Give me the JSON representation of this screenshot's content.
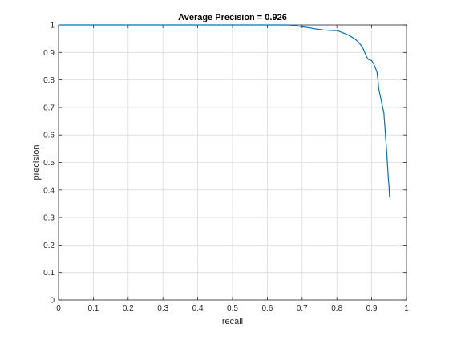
{
  "chart_data": {
    "type": "line",
    "title": "Average Precision = 0.926",
    "xlabel": "recall",
    "ylabel": "precision",
    "xlim": [
      0,
      1
    ],
    "ylim": [
      0,
      1
    ],
    "xticks": [
      "0",
      "0.1",
      "0.2",
      "0.3",
      "0.4",
      "0.5",
      "0.6",
      "0.7",
      "0.8",
      "0.9",
      "1"
    ],
    "yticks": [
      "0",
      "0.1",
      "0.2",
      "0.3",
      "0.4",
      "0.5",
      "0.6",
      "0.7",
      "0.8",
      "0.9",
      "1"
    ],
    "grid": true,
    "series": [
      {
        "color": "#0072bd",
        "points": [
          [
            0.0,
            1.0
          ],
          [
            0.05,
            1.0
          ],
          [
            0.1,
            1.0
          ],
          [
            0.2,
            1.0
          ],
          [
            0.3,
            1.0
          ],
          [
            0.4,
            1.0
          ],
          [
            0.5,
            1.0
          ],
          [
            0.6,
            1.0
          ],
          [
            0.66,
            1.0
          ],
          [
            0.68,
            0.998
          ],
          [
            0.7,
            0.993
          ],
          [
            0.72,
            0.99
          ],
          [
            0.74,
            0.985
          ],
          [
            0.76,
            0.982
          ],
          [
            0.78,
            0.98
          ],
          [
            0.8,
            0.979
          ],
          [
            0.81,
            0.975
          ],
          [
            0.82,
            0.97
          ],
          [
            0.83,
            0.965
          ],
          [
            0.84,
            0.958
          ],
          [
            0.85,
            0.95
          ],
          [
            0.86,
            0.94
          ],
          [
            0.87,
            0.925
          ],
          [
            0.875,
            0.915
          ],
          [
            0.88,
            0.9
          ],
          [
            0.885,
            0.885
          ],
          [
            0.89,
            0.875
          ],
          [
            0.9,
            0.87
          ],
          [
            0.905,
            0.86
          ],
          [
            0.91,
            0.845
          ],
          [
            0.915,
            0.83
          ],
          [
            0.918,
            0.8
          ],
          [
            0.92,
            0.77
          ],
          [
            0.925,
            0.74
          ],
          [
            0.93,
            0.71
          ],
          [
            0.935,
            0.68
          ],
          [
            0.938,
            0.63
          ],
          [
            0.94,
            0.59
          ],
          [
            0.942,
            0.56
          ],
          [
            0.944,
            0.52
          ],
          [
            0.946,
            0.48
          ],
          [
            0.948,
            0.44
          ],
          [
            0.95,
            0.41
          ],
          [
            0.951,
            0.38
          ],
          [
            0.953,
            0.37
          ]
        ]
      }
    ]
  }
}
